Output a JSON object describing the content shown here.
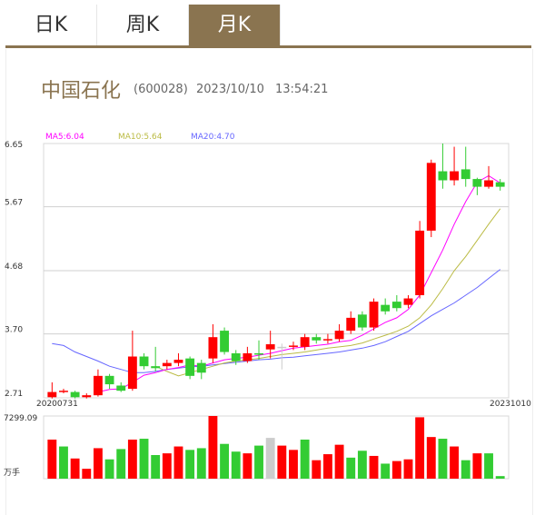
{
  "tabs": [
    {
      "label": "日K"
    },
    {
      "label": "周K"
    },
    {
      "label": "月K",
      "active": true
    }
  ],
  "stock": {
    "name": "中国石化",
    "code": "(600028)",
    "date": "2023/10/10",
    "time": "13:54:21"
  },
  "colors": {
    "up": "#ff0000",
    "down": "#33cc33",
    "neutral": "#cccccc",
    "ma5": "#ff00ff",
    "ma10": "#bbbb44",
    "ma20": "#6666ff",
    "accent": "#8a7450"
  },
  "chart_data": {
    "type": "candlestick",
    "legend": [
      {
        "label": "MA5:6.04",
        "color": "#ff00ff"
      },
      {
        "label": "MA10:5.64",
        "color": "#bbbb44"
      },
      {
        "label": "MA20:4.70",
        "color": "#6666ff"
      }
    ],
    "y_ticks": [
      "6.65",
      "5.67",
      "4.68",
      "3.70",
      "2.71"
    ],
    "ylim": [
      2.71,
      6.65
    ],
    "x_start_label": "20200731",
    "x_end_label": "20231010",
    "candles": [
      {
        "o": 2.8,
        "c": 2.72,
        "h": 2.95,
        "l": 2.7,
        "dir": "up"
      },
      {
        "o": 2.82,
        "c": 2.8,
        "h": 2.85,
        "l": 2.78,
        "dir": "up"
      },
      {
        "o": 2.8,
        "c": 2.72,
        "h": 2.82,
        "l": 2.7,
        "dir": "down"
      },
      {
        "o": 2.75,
        "c": 2.72,
        "h": 2.78,
        "l": 2.7,
        "dir": "up"
      },
      {
        "o": 2.75,
        "c": 3.05,
        "h": 3.15,
        "l": 2.73,
        "dir": "up"
      },
      {
        "o": 3.05,
        "c": 2.92,
        "h": 3.08,
        "l": 2.85,
        "dir": "down"
      },
      {
        "o": 2.9,
        "c": 2.82,
        "h": 2.95,
        "l": 2.8,
        "dir": "down"
      },
      {
        "o": 2.85,
        "c": 3.35,
        "h": 3.75,
        "l": 2.82,
        "dir": "up"
      },
      {
        "o": 3.35,
        "c": 3.2,
        "h": 3.4,
        "l": 3.15,
        "dir": "down"
      },
      {
        "o": 3.2,
        "c": 3.17,
        "h": 3.5,
        "l": 3.12,
        "dir": "down"
      },
      {
        "o": 3.2,
        "c": 3.25,
        "h": 3.3,
        "l": 3.15,
        "dir": "up"
      },
      {
        "o": 3.25,
        "c": 3.3,
        "h": 3.4,
        "l": 3.2,
        "dir": "up"
      },
      {
        "o": 3.32,
        "c": 3.05,
        "h": 3.35,
        "l": 3.0,
        "dir": "down"
      },
      {
        "o": 3.25,
        "c": 3.1,
        "h": 3.3,
        "l": 3.0,
        "dir": "down"
      },
      {
        "o": 3.32,
        "c": 3.65,
        "h": 3.85,
        "l": 3.25,
        "dir": "up"
      },
      {
        "o": 3.75,
        "c": 3.42,
        "h": 3.8,
        "l": 3.38,
        "dir": "down"
      },
      {
        "o": 3.4,
        "c": 3.28,
        "h": 3.45,
        "l": 3.22,
        "dir": "down"
      },
      {
        "o": 3.28,
        "c": 3.4,
        "h": 3.5,
        "l": 3.25,
        "dir": "up"
      },
      {
        "o": 3.4,
        "c": 3.38,
        "h": 3.6,
        "l": 3.3,
        "dir": "down"
      },
      {
        "o": 3.46,
        "c": 3.54,
        "h": 3.75,
        "l": 3.32,
        "dir": "up"
      },
      {
        "o": 3.5,
        "c": 3.5,
        "h": 3.55,
        "l": 3.15,
        "dir": "neutral"
      },
      {
        "o": 3.5,
        "c": 3.52,
        "h": 3.58,
        "l": 3.45,
        "dir": "up"
      },
      {
        "o": 3.5,
        "c": 3.65,
        "h": 3.7,
        "l": 3.45,
        "dir": "up"
      },
      {
        "o": 3.65,
        "c": 3.6,
        "h": 3.7,
        "l": 3.55,
        "dir": "down"
      },
      {
        "o": 3.6,
        "c": 3.62,
        "h": 3.7,
        "l": 3.55,
        "dir": "up"
      },
      {
        "o": 3.62,
        "c": 3.75,
        "h": 3.85,
        "l": 3.58,
        "dir": "up"
      },
      {
        "o": 3.75,
        "c": 3.95,
        "h": 4.05,
        "l": 3.7,
        "dir": "up"
      },
      {
        "o": 3.8,
        "c": 4.0,
        "h": 4.05,
        "l": 3.75,
        "dir": "down"
      },
      {
        "o": 3.8,
        "c": 4.2,
        "h": 4.25,
        "l": 3.75,
        "dir": "up"
      },
      {
        "o": 4.15,
        "c": 4.05,
        "h": 4.25,
        "l": 4.0,
        "dir": "down"
      },
      {
        "o": 4.1,
        "c": 4.2,
        "h": 4.3,
        "l": 4.05,
        "dir": "down"
      },
      {
        "o": 4.15,
        "c": 4.25,
        "h": 4.3,
        "l": 4.1,
        "dir": "up"
      },
      {
        "o": 4.3,
        "c": 5.3,
        "h": 5.45,
        "l": 4.25,
        "dir": "up"
      },
      {
        "o": 5.3,
        "c": 6.35,
        "h": 6.4,
        "l": 5.2,
        "dir": "up"
      },
      {
        "o": 6.22,
        "c": 6.08,
        "h": 6.65,
        "l": 5.95,
        "dir": "down"
      },
      {
        "o": 6.08,
        "c": 6.22,
        "h": 6.6,
        "l": 6.0,
        "dir": "up"
      },
      {
        "o": 6.25,
        "c": 6.1,
        "h": 6.6,
        "l": 5.98,
        "dir": "down"
      },
      {
        "o": 6.1,
        "c": 5.98,
        "h": 6.12,
        "l": 5.85,
        "dir": "down"
      },
      {
        "o": 6.08,
        "c": 5.98,
        "h": 6.3,
        "l": 5.95,
        "dir": "up"
      },
      {
        "o": 6.05,
        "c": 5.98,
        "h": 6.1,
        "l": 5.92,
        "dir": "down"
      }
    ],
    "ma5": [
      null,
      null,
      null,
      null,
      2.8,
      2.84,
      2.85,
      2.95,
      3.06,
      3.1,
      3.15,
      3.18,
      3.22,
      3.2,
      3.25,
      3.3,
      3.32,
      3.34,
      3.37,
      3.4,
      3.44,
      3.48,
      3.5,
      3.52,
      3.54,
      3.58,
      3.6,
      3.68,
      3.78,
      3.88,
      3.95,
      4.08,
      4.3,
      4.65,
      5.0,
      5.4,
      5.75,
      6.05,
      6.15,
      6.04
    ],
    "ma10": [
      null,
      null,
      null,
      null,
      null,
      null,
      null,
      null,
      null,
      3.2,
      3.12,
      3.05,
      3.1,
      3.15,
      3.2,
      3.25,
      3.28,
      3.3,
      3.32,
      3.35,
      3.38,
      3.4,
      3.42,
      3.45,
      3.48,
      3.5,
      3.52,
      3.56,
      3.62,
      3.68,
      3.74,
      3.82,
      3.95,
      4.15,
      4.4,
      4.68,
      4.9,
      5.15,
      5.4,
      5.64
    ],
    "ma20": [
      3.55,
      3.52,
      3.42,
      3.35,
      3.28,
      3.2,
      3.15,
      3.1,
      3.1,
      3.12,
      3.15,
      3.17,
      3.19,
      3.2,
      3.22,
      3.24,
      3.26,
      3.28,
      3.3,
      3.31,
      3.33,
      3.34,
      3.36,
      3.38,
      3.4,
      3.42,
      3.45,
      3.48,
      3.52,
      3.58,
      3.66,
      3.74,
      3.86,
      3.98,
      4.08,
      4.18,
      4.3,
      4.42,
      4.56,
      4.7
    ],
    "volume": {
      "top_label": "7299.09",
      "unit": "万手",
      "max": 7299.09,
      "bars": [
        {
          "v": 4550,
          "dir": "up"
        },
        {
          "v": 3750,
          "dir": "down"
        },
        {
          "v": 2350,
          "dir": "up"
        },
        {
          "v": 1150,
          "dir": "up"
        },
        {
          "v": 3550,
          "dir": "up"
        },
        {
          "v": 2250,
          "dir": "down"
        },
        {
          "v": 3450,
          "dir": "down"
        },
        {
          "v": 4550,
          "dir": "up"
        },
        {
          "v": 4650,
          "dir": "down"
        },
        {
          "v": 2750,
          "dir": "down"
        },
        {
          "v": 2950,
          "dir": "up"
        },
        {
          "v": 3750,
          "dir": "up"
        },
        {
          "v": 3350,
          "dir": "down"
        },
        {
          "v": 3550,
          "dir": "down"
        },
        {
          "v": 7299,
          "dir": "up"
        },
        {
          "v": 4050,
          "dir": "down"
        },
        {
          "v": 3150,
          "dir": "down"
        },
        {
          "v": 2950,
          "dir": "up"
        },
        {
          "v": 3850,
          "dir": "down"
        },
        {
          "v": 4750,
          "dir": "neutral"
        },
        {
          "v": 3850,
          "dir": "up"
        },
        {
          "v": 3350,
          "dir": "up"
        },
        {
          "v": 4550,
          "dir": "down"
        },
        {
          "v": 2150,
          "dir": "up"
        },
        {
          "v": 2850,
          "dir": "up"
        },
        {
          "v": 3950,
          "dir": "up"
        },
        {
          "v": 2450,
          "dir": "down"
        },
        {
          "v": 3250,
          "dir": "down"
        },
        {
          "v": 2650,
          "dir": "up"
        },
        {
          "v": 1750,
          "dir": "down"
        },
        {
          "v": 2050,
          "dir": "up"
        },
        {
          "v": 2250,
          "dir": "up"
        },
        {
          "v": 7150,
          "dir": "up"
        },
        {
          "v": 4850,
          "dir": "up"
        },
        {
          "v": 4650,
          "dir": "down"
        },
        {
          "v": 3750,
          "dir": "up"
        },
        {
          "v": 2150,
          "dir": "down"
        },
        {
          "v": 2950,
          "dir": "up"
        },
        {
          "v": 2950,
          "dir": "down"
        },
        {
          "v": 300,
          "dir": "down"
        }
      ]
    }
  }
}
